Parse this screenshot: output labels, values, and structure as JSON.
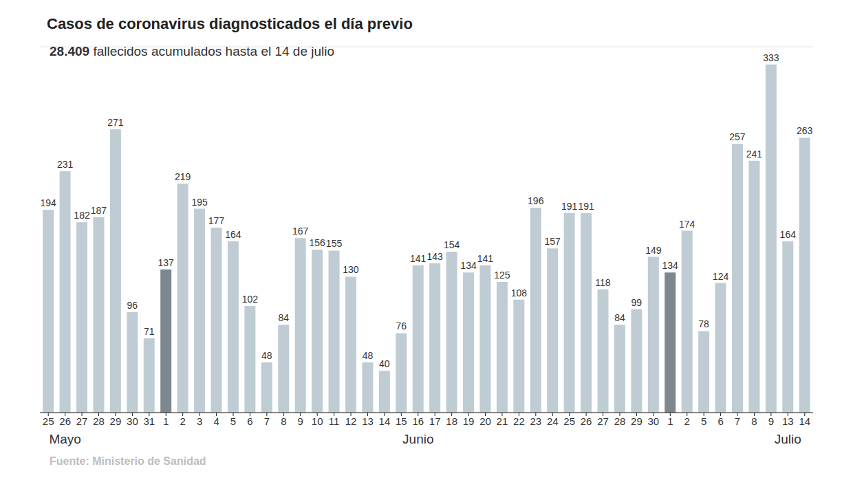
{
  "chart_data": {
    "type": "bar",
    "title": "Casos de coronavirus diagnosticados el día previo",
    "subtitle": "28.409 fallecidos acumulados hasta el 14 de julio",
    "source": "Fuente: Ministerio de Sanidad",
    "categories": [
      "25",
      "26",
      "27",
      "28",
      "29",
      "30",
      "31",
      "1",
      "2",
      "3",
      "4",
      "5",
      "6",
      "7",
      "8",
      "9",
      "10",
      "11",
      "12",
      "13",
      "14",
      "15",
      "16",
      "17",
      "18",
      "19",
      "20",
      "21",
      "22",
      "23",
      "24",
      "25",
      "26",
      "27",
      "28",
      "29",
      "30",
      "1",
      "2",
      "5",
      "6",
      "7",
      "8",
      "9",
      "13",
      "14"
    ],
    "x_group_labels": [
      null,
      "Mayo",
      null,
      null,
      null,
      null,
      null,
      null,
      null,
      null,
      null,
      null,
      null,
      null,
      null,
      null,
      null,
      null,
      null,
      null,
      null,
      null,
      "Junio",
      null,
      null,
      null,
      null,
      null,
      null,
      null,
      null,
      null,
      null,
      null,
      null,
      null,
      null,
      null,
      null,
      null,
      null,
      null,
      null,
      null,
      "Julio",
      null
    ],
    "values": [
      194,
      231,
      182,
      187,
      271,
      96,
      71,
      137,
      219,
      195,
      177,
      164,
      102,
      48,
      84,
      167,
      156,
      155,
      130,
      48,
      40,
      76,
      141,
      143,
      154,
      134,
      141,
      125,
      108,
      196,
      157,
      191,
      191,
      118,
      84,
      99,
      149,
      134,
      174,
      78,
      124,
      257,
      241,
      333,
      164,
      263
    ],
    "colors": [
      "#bfccd4",
      "#bfccd4",
      "#bfccd4",
      "#bfccd4",
      "#bfccd4",
      "#bfccd4",
      "#bfccd4",
      "#7c878e",
      "#bfccd4",
      "#bfccd4",
      "#bfccd4",
      "#bfccd4",
      "#bfccd4",
      "#bfccd4",
      "#bfccd4",
      "#bfccd4",
      "#bfccd4",
      "#bfccd4",
      "#bfccd4",
      "#bfccd4",
      "#bfccd4",
      "#bfccd4",
      "#bfccd4",
      "#bfccd4",
      "#bfccd4",
      "#bfccd4",
      "#bfccd4",
      "#bfccd4",
      "#bfccd4",
      "#bfccd4",
      "#bfccd4",
      "#bfccd4",
      "#bfccd4",
      "#bfccd4",
      "#bfccd4",
      "#bfccd4",
      "#bfccd4",
      "#7c878e",
      "#bfccd4",
      "#bfccd4",
      "#bfccd4",
      "#bfccd4",
      "#bfccd4",
      "#bfccd4",
      "#bfccd4",
      "#bfccd4"
    ],
    "ylim": [
      0,
      350
    ],
    "yticks": [
      0,
      50,
      100,
      150,
      200,
      250,
      300,
      350
    ],
    "grid": true,
    "tick_labels": "x",
    "data_labels": true
  }
}
